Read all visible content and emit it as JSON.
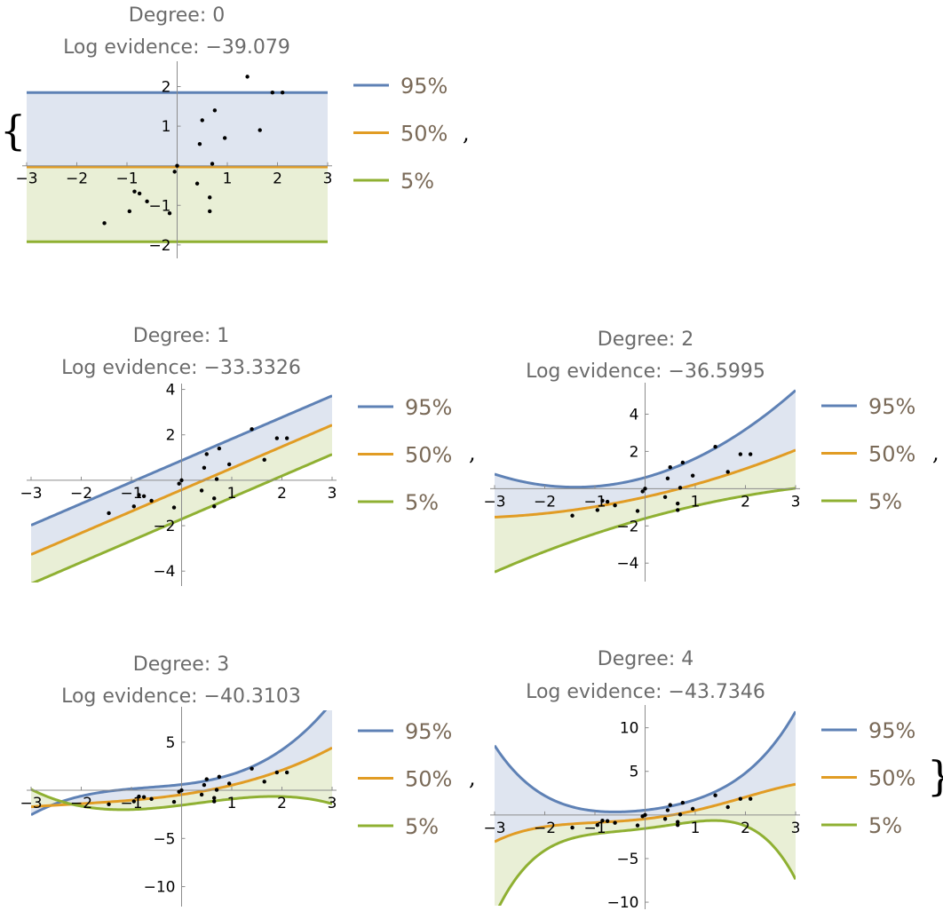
{
  "legend": {
    "labels": [
      "95%",
      "50%",
      "5%"
    ],
    "colors": [
      "#5e81b5",
      "#e19c24",
      "#8fb032"
    ]
  },
  "fill_colors": {
    "upper": "#dfe5f0",
    "lower": "#e9efd6"
  },
  "punctuation": {
    "open_brace": "{",
    "close_brace": "}",
    "comma": ","
  },
  "data_points": {
    "x": [
      -1.45,
      -0.95,
      -0.85,
      -0.75,
      -0.6,
      -0.15,
      -0.05,
      0,
      0.4,
      0.45,
      0.5,
      0.65,
      0.65,
      0.7,
      0.75,
      0.95,
      1.4,
      1.65,
      1.9,
      2.1
    ],
    "y": [
      -1.45,
      -1.15,
      -0.65,
      -0.7,
      -0.9,
      -1.2,
      -0.15,
      0,
      -0.45,
      0.55,
      1.15,
      -0.8,
      -1.15,
      0.05,
      1.4,
      0.7,
      2.25,
      0.9,
      1.85,
      1.85
    ]
  },
  "chart_data": [
    {
      "type": "line",
      "title": "Degree: 0",
      "subtitle": "Log evidence: −39.079",
      "xlim": [
        -3,
        3
      ],
      "ylim": [
        -2.25,
        2.55
      ],
      "xticks": [
        -3,
        -2,
        -1,
        1,
        2,
        3
      ],
      "yticks": [
        -2,
        -1,
        1,
        2
      ],
      "series": [
        {
          "name": "95%",
          "coefficients": [
            1.85
          ]
        },
        {
          "name": "50%",
          "coefficients": [
            -0.03
          ]
        },
        {
          "name": "5%",
          "coefficients": [
            -1.92
          ]
        }
      ]
    },
    {
      "type": "line",
      "title": "Degree: 1",
      "subtitle": "Log evidence: −33.3326",
      "xlim": [
        -3,
        3
      ],
      "ylim": [
        -4.5,
        4.1
      ],
      "xticks": [
        -3,
        -2,
        -1,
        1,
        2,
        3
      ],
      "yticks": [
        -4,
        -2,
        2,
        4
      ],
      "series": [
        {
          "name": "95%",
          "coefficients": [
            0.87,
            0.95
          ]
        },
        {
          "name": "50%",
          "coefficients": [
            -0.42,
            0.95
          ]
        },
        {
          "name": "5%",
          "coefficients": [
            -1.71,
            0.95
          ]
        }
      ]
    },
    {
      "type": "line",
      "title": "Degree: 2",
      "subtitle": "Log evidence: −36.5995",
      "xlim": [
        -3,
        3
      ],
      "ylim": [
        -4.8,
        5.5
      ],
      "xticks": [
        -3,
        -2,
        -1,
        1,
        2,
        3
      ],
      "yticks": [
        -4,
        -2,
        2,
        4
      ],
      "series": [
        {
          "name": "95%",
          "coefficients": [
            0.6,
            0.75,
            0.27
          ]
        },
        {
          "name": "50%",
          "coefficients": [
            -0.45,
            0.6,
            0.08
          ]
        },
        {
          "name": "5%",
          "coefficients": [
            -1.6,
            0.75,
            -0.07
          ]
        }
      ]
    },
    {
      "type": "line",
      "title": "Degree: 3",
      "subtitle": "Log evidence: −40.3103",
      "xlim": [
        -3,
        3
      ],
      "ylim": [
        -11.7,
        8.3
      ],
      "xticks": [
        -3,
        -2,
        -1,
        1,
        2,
        3
      ],
      "yticks": [
        -10,
        -5,
        5
      ],
      "series": [
        {
          "name": "95%",
          "coefficients": [
            0.6,
            0.6,
            0.3,
            0.15
          ]
        },
        {
          "name": "50%",
          "coefficients": [
            -0.45,
            0.75,
            0.2,
            0.03
          ]
        },
        {
          "name": "5%",
          "coefficients": [
            -1.55,
            0.65,
            0.1,
            -0.1
          ]
        }
      ]
    },
    {
      "type": "line",
      "title": "Degree: 4",
      "subtitle": "Log evidence: −43.7346",
      "xlim": [
        -3,
        3
      ],
      "ylim": [
        -10.4,
        12.2
      ],
      "xticks": [
        -3,
        -2,
        -1,
        1,
        2,
        3
      ],
      "yticks": [
        -10,
        -5,
        5,
        10
      ],
      "series": [
        {
          "name": "95%",
          "coefficients": [
            0.55,
            0.65,
            0.5,
            0.0,
            0.06
          ]
        },
        {
          "name": "50%",
          "coefficients": [
            -0.45,
            0.65,
            0.3,
            0.05,
            -0.025
          ]
        },
        {
          "name": "5%",
          "coefficients": [
            -1.55,
            0.7,
            0.2,
            0.0,
            -0.12
          ]
        }
      ]
    }
  ]
}
